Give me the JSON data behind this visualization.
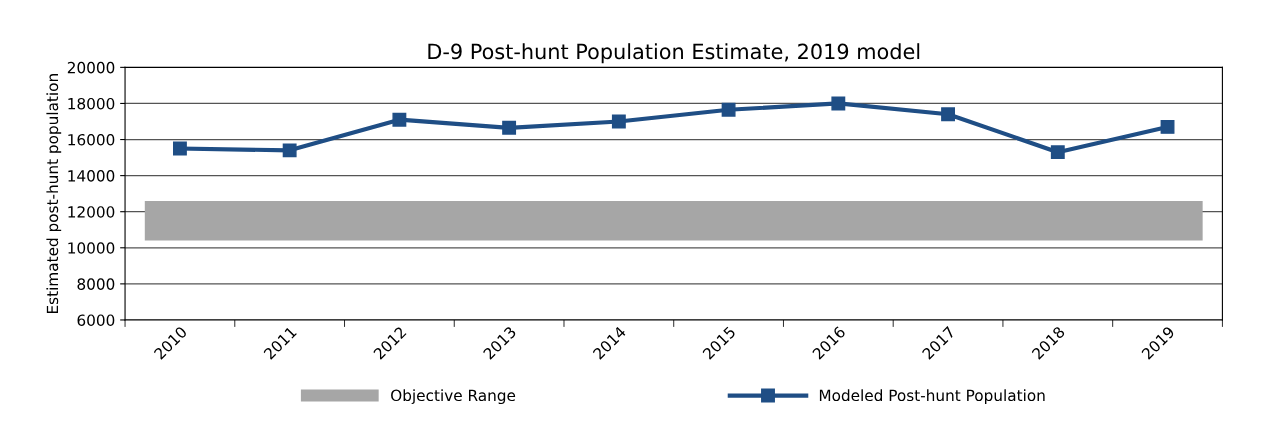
{
  "chart_data": {
    "type": "line",
    "title": "D-9 Post-hunt Population Estimate, 2019 model",
    "ylabel": "Estimated post-hunt population",
    "categories": [
      "2010",
      "2011",
      "2012",
      "2013",
      "2014",
      "2015",
      "2016",
      "2017",
      "2018",
      "2019"
    ],
    "series": [
      {
        "name": "Modeled Post-hunt Population",
        "color": "#1f4e85",
        "values": [
          15500,
          15400,
          17100,
          16650,
          17000,
          17650,
          18000,
          17400,
          15300,
          16700
        ]
      }
    ],
    "bands": [
      {
        "axis": "y",
        "from": 10400,
        "to": 12600,
        "label": "Objective Range",
        "color": "#a6a6a6"
      }
    ],
    "ylim": [
      6000,
      20000
    ],
    "yticks": [
      6000,
      8000,
      10000,
      12000,
      14000,
      16000,
      18000,
      20000
    ],
    "grid": "y",
    "legend": "bottom",
    "marker": "square",
    "line_style": "solid"
  }
}
